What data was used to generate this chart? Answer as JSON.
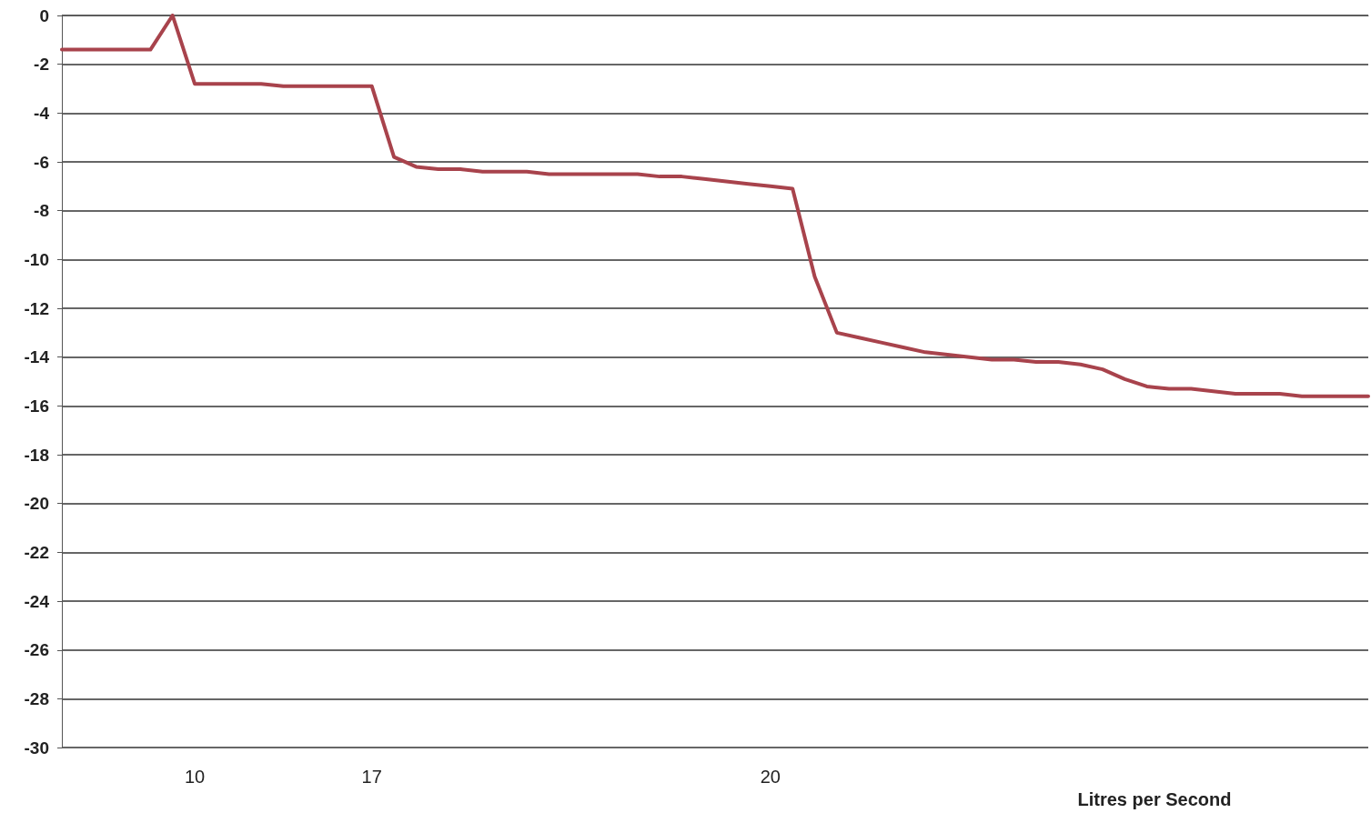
{
  "chart_data": {
    "type": "line",
    "xlabel": "Litres per Second",
    "categories": [
      null,
      null,
      null,
      null,
      null,
      null,
      "10",
      null,
      null,
      null,
      null,
      null,
      null,
      null,
      "17",
      null,
      null,
      null,
      null,
      null,
      null,
      null,
      null,
      null,
      null,
      null,
      null,
      null,
      null,
      null,
      null,
      null,
      "20",
      null,
      null,
      null,
      null,
      null,
      null,
      null,
      null,
      null,
      null,
      null,
      null,
      null,
      null,
      null,
      null,
      null,
      null,
      null,
      null,
      null,
      null,
      null,
      null,
      null,
      null,
      null
    ],
    "values": [
      -1.4,
      -1.4,
      -1.4,
      -1.4,
      -1.4,
      0,
      -2.8,
      -2.8,
      -2.8,
      -2.8,
      -2.9,
      -2.9,
      -2.9,
      -2.9,
      -2.9,
      -5.8,
      -6.2,
      -6.3,
      -6.3,
      -6.4,
      -6.4,
      -6.4,
      -6.5,
      -6.5,
      -6.5,
      -6.5,
      -6.5,
      -6.6,
      -6.6,
      -6.7,
      -6.8,
      -6.9,
      -7.0,
      -7.1,
      -10.7,
      -13.0,
      -13.2,
      -13.4,
      -13.6,
      -13.8,
      -13.9,
      -14.0,
      -14.1,
      -14.1,
      -14.2,
      -14.2,
      -14.3,
      -14.5,
      -14.9,
      -15.2,
      -15.3,
      -15.3,
      -15.4,
      -15.5,
      -15.5,
      -15.5,
      -15.6,
      -15.6,
      -15.6,
      -15.6
    ],
    "color": "#a8434c",
    "ylim": [
      -30,
      0
    ],
    "yticks": [
      -30,
      -28,
      -26,
      -24,
      -22,
      -20,
      -18,
      -16,
      -14,
      -12,
      -10,
      -8,
      -6,
      -4,
      -2,
      0
    ],
    "grid": "y",
    "marker": "none",
    "line_style": "solid"
  }
}
